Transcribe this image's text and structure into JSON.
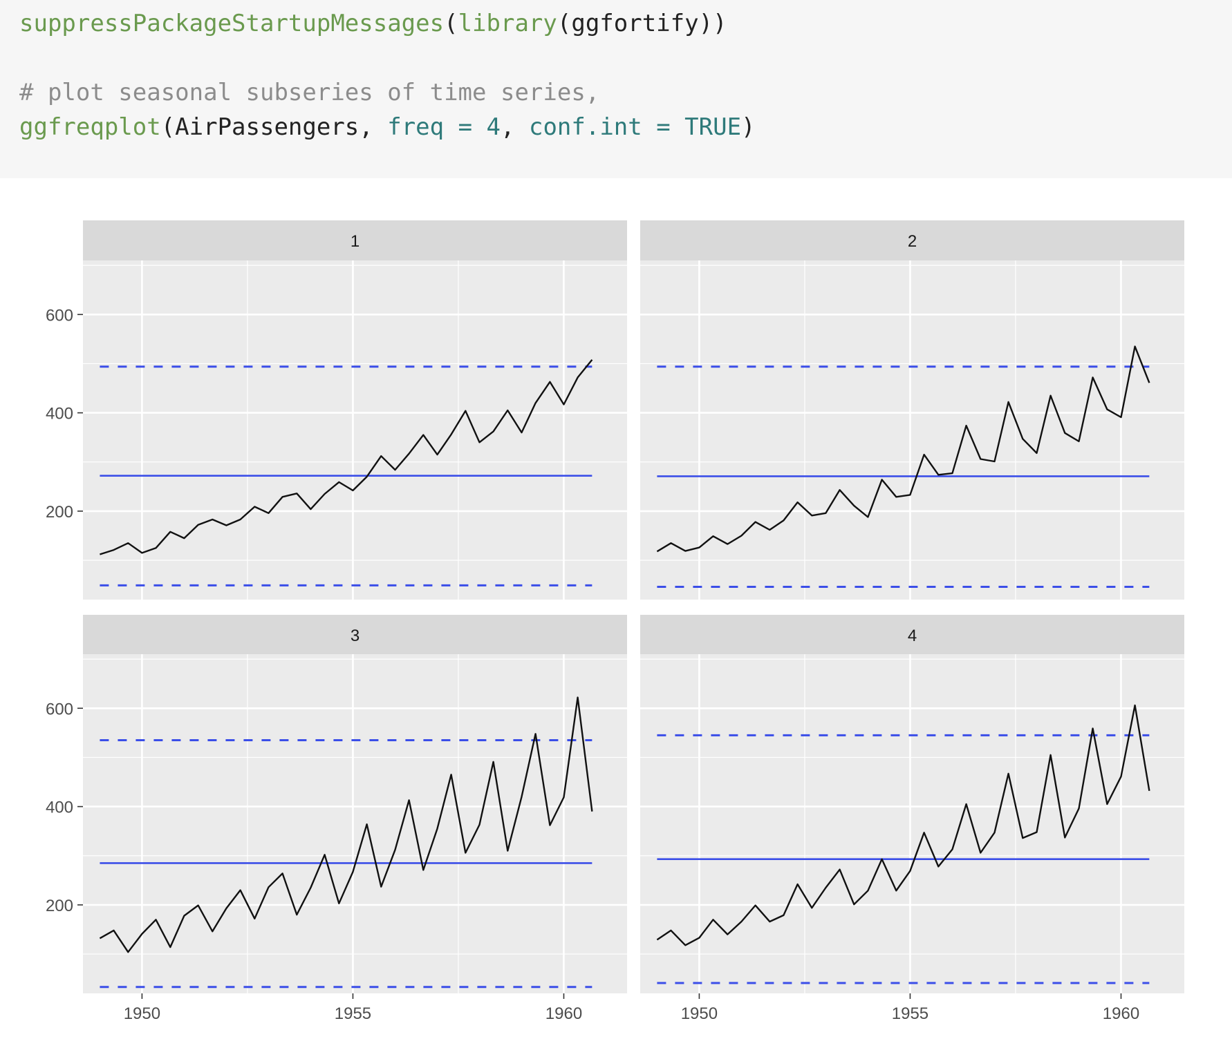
{
  "code": {
    "line1": {
      "fn_suppress": "suppressPackageStartupMessages",
      "paren_open": "(",
      "fn_library": "library",
      "arg": "(ggfortify))"
    },
    "line2": {
      "comment": "# plot seasonal subseries of time series,"
    },
    "line3": {
      "fn": "ggfreqplot",
      "open": "(AirPassengers, ",
      "arg_freq": "freq",
      "eq1": " = ",
      "val_freq": "4",
      "comma": ", ",
      "arg_conf": "conf.int",
      "eq2": " = ",
      "val_conf": "TRUE",
      "close": ")"
    }
  },
  "colors": {
    "panel_bg": "#ebebeb",
    "strip_bg": "#d9d9d9",
    "grid": "#ffffff",
    "series": "#111111",
    "mean_line": "#3b4ee8",
    "ci_line": "#3b4ee8",
    "axis_text": "#4d4d4d"
  },
  "chart_data": {
    "type": "line",
    "facets": [
      "1",
      "2",
      "3",
      "4"
    ],
    "x_ticks": [
      "1950",
      "1955",
      "1960"
    ],
    "y_ticks": [
      "200",
      "400",
      "600"
    ],
    "xlim": [
      1948.6,
      1961.5
    ],
    "ylim": [
      20,
      710
    ],
    "grid": true,
    "series": [
      {
        "facet": "1",
        "x": [
          1949.0,
          1949.33,
          1949.67,
          1950.0,
          1950.33,
          1950.67,
          1951.0,
          1951.33,
          1951.67,
          1952.0,
          1952.33,
          1952.67,
          1953.0,
          1953.33,
          1953.67,
          1954.0,
          1954.33,
          1954.67,
          1955.0,
          1955.33,
          1955.67,
          1956.0,
          1956.33,
          1956.67,
          1957.0,
          1957.33,
          1957.67,
          1958.0,
          1958.33,
          1958.67,
          1959.0,
          1959.33,
          1959.67,
          1960.0,
          1960.33,
          1960.67
        ],
        "y": [
          112,
          121,
          135,
          115,
          125,
          158,
          145,
          172,
          183,
          171,
          183,
          209,
          196,
          229,
          236,
          204,
          235,
          259,
          242,
          270,
          312,
          284,
          317,
          355,
          315,
          356,
          404,
          340,
          362,
          405,
          360,
          420,
          463,
          417,
          472,
          508
        ],
        "mean": 272,
        "ci_upper": 494,
        "ci_lower": 49
      },
      {
        "facet": "2",
        "x": [
          1949.0,
          1949.33,
          1949.67,
          1950.0,
          1950.33,
          1950.67,
          1951.0,
          1951.33,
          1951.67,
          1952.0,
          1952.33,
          1952.67,
          1953.0,
          1953.33,
          1953.67,
          1954.0,
          1954.33,
          1954.67,
          1955.0,
          1955.33,
          1955.67,
          1956.0,
          1956.33,
          1956.67,
          1957.0,
          1957.33,
          1957.67,
          1958.0,
          1958.33,
          1958.67,
          1959.0,
          1959.33,
          1959.67,
          1960.0,
          1960.33,
          1960.67
        ],
        "y": [
          118,
          135,
          119,
          126,
          149,
          133,
          150,
          178,
          162,
          181,
          218,
          191,
          196,
          243,
          211,
          188,
          264,
          229,
          233,
          315,
          274,
          277,
          374,
          306,
          301,
          422,
          347,
          318,
          435,
          359,
          342,
          472,
          407,
          391,
          535,
          461
        ],
        "mean": 271,
        "ci_upper": 494,
        "ci_lower": 46
      },
      {
        "facet": "3",
        "x": [
          1949.0,
          1949.33,
          1949.67,
          1950.0,
          1950.33,
          1950.67,
          1951.0,
          1951.33,
          1951.67,
          1952.0,
          1952.33,
          1952.67,
          1953.0,
          1953.33,
          1953.67,
          1954.0,
          1954.33,
          1954.67,
          1955.0,
          1955.33,
          1955.67,
          1956.0,
          1956.33,
          1956.67,
          1957.0,
          1957.33,
          1957.67,
          1958.0,
          1958.33,
          1958.67,
          1959.0,
          1959.33,
          1959.67,
          1960.0,
          1960.33,
          1960.67
        ],
        "y": [
          132,
          148,
          104,
          141,
          170,
          114,
          178,
          199,
          146,
          193,
          230,
          172,
          236,
          264,
          180,
          235,
          302,
          203,
          267,
          364,
          237,
          312,
          413,
          271,
          355,
          465,
          306,
          363,
          491,
          310,
          420,
          548,
          362,
          419,
          622,
          390
        ],
        "mean": 285,
        "ci_upper": 535,
        "ci_lower": 33
      },
      {
        "facet": "4",
        "x": [
          1949.0,
          1949.33,
          1949.67,
          1950.0,
          1950.33,
          1950.67,
          1951.0,
          1951.33,
          1951.67,
          1952.0,
          1952.33,
          1952.67,
          1953.0,
          1953.33,
          1953.67,
          1954.0,
          1954.33,
          1954.67,
          1955.0,
          1955.33,
          1955.67,
          1956.0,
          1956.33,
          1956.67,
          1957.0,
          1957.33,
          1957.67,
          1958.0,
          1958.33,
          1958.67,
          1959.0,
          1959.33,
          1959.67,
          1960.0,
          1960.33,
          1960.67
        ],
        "y": [
          129,
          148,
          118,
          133,
          170,
          140,
          166,
          199,
          166,
          179,
          242,
          194,
          235,
          272,
          201,
          229,
          293,
          229,
          269,
          347,
          278,
          313,
          405,
          306,
          347,
          467,
          336,
          348,
          505,
          337,
          396,
          559,
          405,
          461,
          606,
          432
        ],
        "mean": 293,
        "ci_upper": 545,
        "ci_lower": 41
      }
    ]
  }
}
